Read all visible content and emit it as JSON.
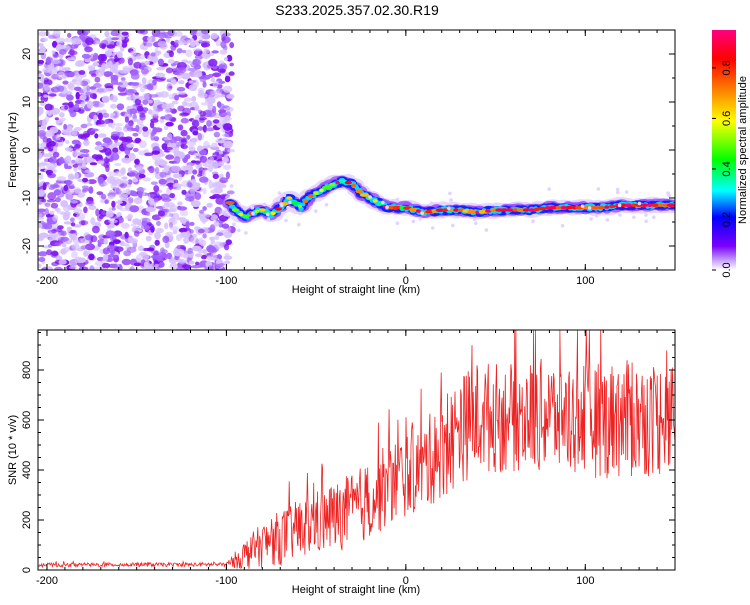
{
  "figure": {
    "title": "S233.2025.357.02.30.R19"
  },
  "chart_data": [
    {
      "type": "heatmap",
      "xlabel": "Height of straight line (km)",
      "ylabel": "Frequency (Hz)",
      "xlim": [
        -205,
        150
      ],
      "ylim": [
        -25,
        25
      ],
      "x_ticks": [
        -200,
        -100,
        0,
        100
      ],
      "y_ticks": [
        -20,
        -10,
        0,
        10,
        20
      ],
      "colorbar": {
        "label": "Normalized spectral amplitude",
        "ticks": [
          0.0,
          0.2,
          0.4,
          0.6,
          0.8
        ],
        "tick_labels": [
          "0.0",
          "0.2",
          "0.4",
          "0.6",
          "0.8"
        ],
        "range": [
          0,
          0.95
        ],
        "colors": [
          "#ffffff",
          "#7a00ff",
          "#0000ff",
          "#00ffff",
          "#00ff00",
          "#ffff00",
          "#ff8000",
          "#ff0000",
          "#ff0080"
        ]
      },
      "noise_region_x": [
        -205,
        -97
      ],
      "ridge": {
        "x": [
          -98,
          -95,
          -90,
          -85,
          -80,
          -75,
          -70,
          -65,
          -62,
          -58,
          -55,
          -50,
          -45,
          -40,
          -35,
          -30,
          -25,
          -20,
          -15,
          -10,
          -5,
          0,
          10,
          20,
          30,
          40,
          50,
          60,
          70,
          80,
          90,
          100,
          110,
          120,
          130,
          140,
          150
        ],
        "y": [
          -11,
          -12.5,
          -14,
          -13,
          -12.5,
          -13.5,
          -12,
          -10,
          -11,
          -12,
          -10,
          -9,
          -8,
          -7,
          -6.5,
          -7,
          -9,
          -10,
          -11,
          -12,
          -12,
          -12,
          -13,
          -12.5,
          -12.5,
          -13,
          -12.5,
          -12.5,
          -12.5,
          -12,
          -12,
          -12,
          -12,
          -11.5,
          -11.5,
          -11.5,
          -11.5
        ],
        "peak_amplitude": 0.95
      }
    },
    {
      "type": "line",
      "xlabel": "Height of straight line (km)",
      "ylabel": "SNR (10 * v/v)",
      "xlim": [
        -205,
        150
      ],
      "ylim": [
        0,
        960
      ],
      "x_ticks": [
        -200,
        -100,
        0,
        100
      ],
      "y_ticks": [
        0,
        200,
        400,
        600,
        800
      ],
      "color": "#ee2222",
      "envelope": {
        "x": [
          -205,
          -100,
          -90,
          -80,
          -70,
          -60,
          -50,
          -40,
          -30,
          -20,
          -10,
          0,
          10,
          20,
          30,
          40,
          60,
          80,
          100,
          120,
          150
        ],
        "mean": [
          20,
          22,
          60,
          100,
          130,
          160,
          190,
          210,
          240,
          280,
          340,
          380,
          420,
          480,
          560,
          610,
          610,
          620,
          600,
          600,
          610
        ],
        "spread": [
          8,
          8,
          60,
          90,
          110,
          120,
          130,
          140,
          150,
          160,
          170,
          170,
          180,
          200,
          220,
          230,
          220,
          230,
          230,
          240,
          230
        ]
      }
    }
  ]
}
